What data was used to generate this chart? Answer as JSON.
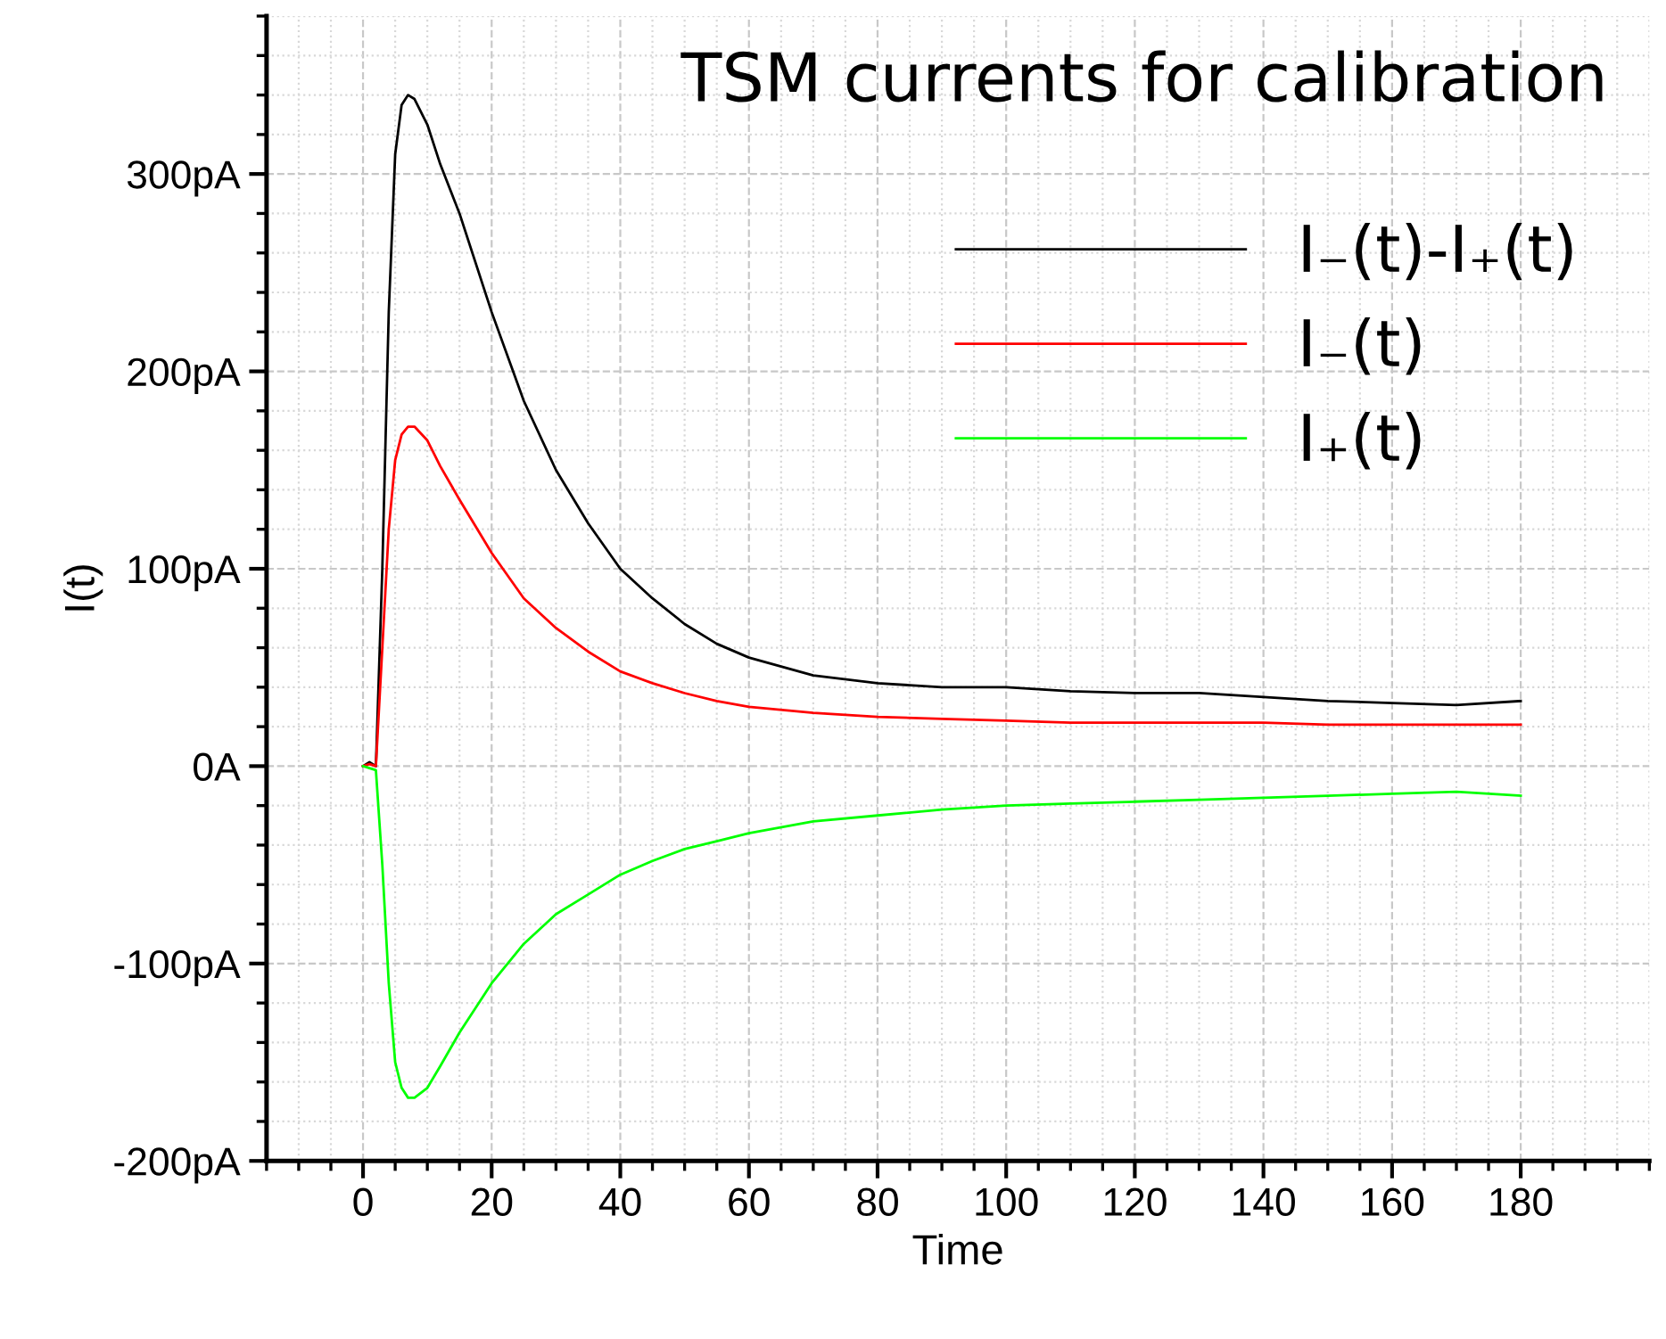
{
  "chart_data": {
    "type": "line",
    "title": "TSM currents for calibration",
    "xlabel": "Time",
    "ylabel": "I(t)",
    "xlim": [
      -15,
      200
    ],
    "xticks": [
      0,
      20,
      40,
      60,
      80,
      100,
      120,
      140,
      160,
      180
    ],
    "ylim": [
      -200,
      380
    ],
    "yticks": [
      {
        "value": -200,
        "label": "-200pA"
      },
      {
        "value": -100,
        "label": "-100pA"
      },
      {
        "value": 0,
        "label": "0A"
      },
      {
        "value": 100,
        "label": "100pA"
      },
      {
        "value": 200,
        "label": "200pA"
      },
      {
        "value": 300,
        "label": "300pA"
      }
    ],
    "grid": true,
    "legend": "top right",
    "line_style": "solid",
    "marker": "none",
    "x": [
      0,
      1,
      2,
      3,
      4,
      5,
      6,
      7,
      8,
      10,
      12,
      15,
      20,
      25,
      30,
      35,
      40,
      45,
      50,
      55,
      60,
      70,
      80,
      90,
      100,
      110,
      120,
      130,
      140,
      150,
      160,
      170,
      180
    ],
    "series": [
      {
        "name": "I₋(t)-I₊(t)",
        "color": "#000000",
        "values": [
          0,
          2,
          0,
          100,
          230,
          310,
          335,
          340,
          338,
          325,
          305,
          280,
          230,
          185,
          150,
          123,
          100,
          85,
          72,
          62,
          55,
          46,
          42,
          40,
          40,
          38,
          37,
          37,
          35,
          33,
          32,
          31,
          33
        ]
      },
      {
        "name": "I₋(t)",
        "color": "#ff0000",
        "values": [
          0,
          1,
          0,
          60,
          120,
          155,
          168,
          172,
          172,
          165,
          152,
          135,
          108,
          85,
          70,
          58,
          48,
          42,
          37,
          33,
          30,
          27,
          25,
          24,
          23,
          22,
          22,
          22,
          22,
          21,
          21,
          21,
          21
        ]
      },
      {
        "name": "I₊(t)",
        "color": "#00ff00",
        "values": [
          0,
          -1,
          -2,
          -50,
          -110,
          -150,
          -163,
          -168,
          -168,
          -163,
          -152,
          -135,
          -110,
          -90,
          -75,
          -65,
          -55,
          -48,
          -42,
          -38,
          -34,
          -28,
          -25,
          -22,
          -20,
          -19,
          -18,
          -17,
          -16,
          -15,
          -14,
          -13,
          -15
        ]
      }
    ]
  }
}
